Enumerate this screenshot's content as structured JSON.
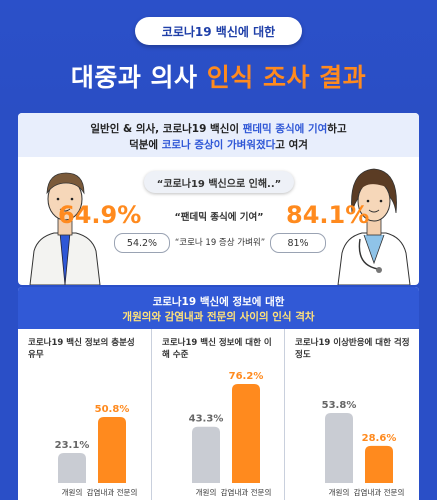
{
  "header": {
    "pill_text": "코로나19 백신에 대한",
    "title_main": "대중과 의사",
    "title_accent": "인식 조사 결과"
  },
  "panel1": {
    "line1": "일반인 & 의사, 코로나19 백신이",
    "line1_highlight": "팬데믹 종식에 기여",
    "line1_tail": "하고",
    "line2": "덕분에",
    "line2_highlight": "코로나 증상이 가벼워졌다",
    "line2_tail": "고 여겨",
    "quote": "“코로나19 백신으로 인해..”",
    "stat1_label": "“팬데믹 종식에 기여”",
    "stat1_left": "64.9%",
    "stat1_right": "84.1%",
    "stat2_label": "“코로나 19 증상 가벼워”",
    "stat2_left": "54.2%",
    "stat2_right": "81%"
  },
  "panel2": {
    "line1": "코로나19 백신에 정보에 대한",
    "line2": "개원의와 감염내과 전문의 사이의 인식 격차"
  },
  "chart_data": [
    {
      "type": "bar",
      "title": "코로나19 백신 정보의 충분성 유무",
      "categories": [
        "개원의",
        "감염내과 전문의"
      ],
      "values": [
        23.1,
        50.8
      ],
      "value_labels": [
        "23.1%",
        "50.8%"
      ],
      "ylim": [
        0,
        80
      ]
    },
    {
      "type": "bar",
      "title": "코로나19 백신 정보에 대한 이해 수준",
      "categories": [
        "개원의",
        "감염내과 전문의"
      ],
      "values": [
        43.3,
        76.2
      ],
      "value_labels": [
        "43.3%",
        "76.2%"
      ],
      "ylim": [
        0,
        80
      ]
    },
    {
      "type": "bar",
      "title": "코로나19 이상반응에 대한 걱정 정도",
      "categories": [
        "개원의",
        "감염내과 전문의"
      ],
      "values": [
        53.8,
        28.6
      ],
      "value_labels": [
        "53.8%",
        "28.6%"
      ],
      "ylim": [
        0,
        80
      ]
    }
  ],
  "colors": {
    "background": "#2a4fc7",
    "accent": "#ff8a1e",
    "bar_gray": "#c9ccd3",
    "bar_orange": "#ff8a1e",
    "highlight_blue": "#2f57d6"
  }
}
